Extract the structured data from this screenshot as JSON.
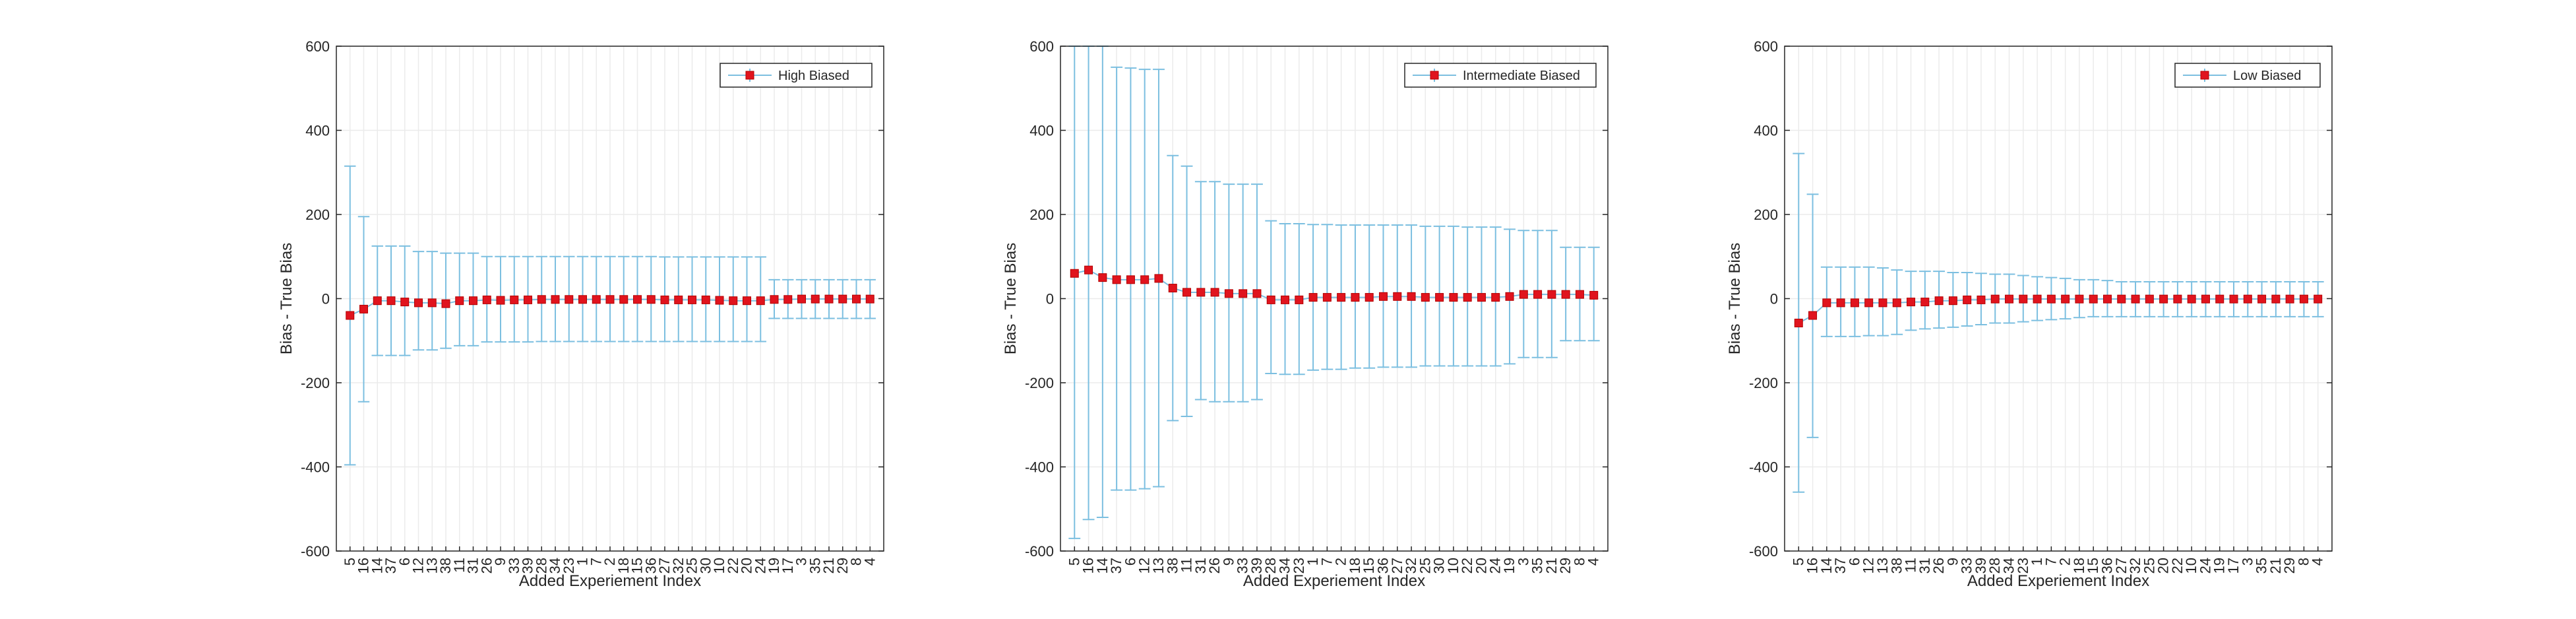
{
  "figure": {
    "colors": {
      "errorbar": "#7cbfe0",
      "marker": "#e0141e",
      "marker_edge": "#b30000",
      "axes": "#262626",
      "grid": "#ebebeb"
    }
  },
  "chart_data": [
    {
      "type": "errorbar",
      "xlabel": "Added Experiement Index",
      "ylabel": "Bias - True Bias",
      "ylim": [
        -600,
        600
      ],
      "yticks": [
        -600,
        -400,
        -200,
        0,
        200,
        400,
        600
      ],
      "grid": true,
      "legend_placement": "top-right",
      "categories": [
        "5",
        "16",
        "14",
        "37",
        "6",
        "12",
        "13",
        "38",
        "11",
        "31",
        "26",
        "9",
        "33",
        "39",
        "28",
        "34",
        "23",
        "1",
        "7",
        "2",
        "18",
        "15",
        "36",
        "27",
        "32",
        "25",
        "30",
        "10",
        "22",
        "20",
        "24",
        "19",
        "17",
        "3",
        "35",
        "21",
        "29",
        "8",
        "4"
      ],
      "series": [
        {
          "name": "High Biased",
          "values": [
            -40,
            -25,
            -5,
            -5,
            -8,
            -10,
            -10,
            -12,
            -5,
            -5,
            -3,
            -4,
            -3,
            -3,
            -2,
            -2,
            -2,
            -2,
            -2,
            -2,
            -2,
            -2,
            -2,
            -3,
            -3,
            -3,
            -3,
            -4,
            -5,
            -5,
            -5,
            -2,
            -2,
            -1,
            -1,
            -1,
            -1,
            -1,
            -1
          ],
          "upper": [
            315,
            195,
            125,
            125,
            125,
            112,
            112,
            108,
            108,
            108,
            100,
            100,
            100,
            100,
            100,
            100,
            100,
            100,
            100,
            100,
            100,
            100,
            100,
            99,
            99,
            99,
            99,
            99,
            99,
            99,
            99,
            45,
            45,
            45,
            45,
            45,
            45,
            45,
            45
          ],
          "lower": [
            -395,
            -245,
            -135,
            -135,
            -135,
            -122,
            -122,
            -118,
            -112,
            -112,
            -103,
            -103,
            -103,
            -103,
            -102,
            -102,
            -102,
            -102,
            -102,
            -102,
            -102,
            -102,
            -102,
            -102,
            -102,
            -102,
            -102,
            -102,
            -102,
            -102,
            -102,
            -47,
            -47,
            -47,
            -47,
            -47,
            -47,
            -47,
            -47
          ]
        }
      ]
    },
    {
      "type": "errorbar",
      "xlabel": "Added Experiement Index",
      "ylabel": "Bias - True Bias",
      "ylim": [
        -600,
        600
      ],
      "yticks": [
        -600,
        -400,
        -200,
        0,
        200,
        400,
        600
      ],
      "grid": true,
      "legend_placement": "top-right",
      "categories": [
        "5",
        "16",
        "14",
        "37",
        "6",
        "12",
        "13",
        "38",
        "11",
        "31",
        "26",
        "9",
        "33",
        "39",
        "28",
        "34",
        "23",
        "1",
        "7",
        "2",
        "18",
        "15",
        "36",
        "27",
        "32",
        "25",
        "30",
        "10",
        "22",
        "20",
        "24",
        "19",
        "3",
        "35",
        "21",
        "29",
        "8",
        "4"
      ],
      "series": [
        {
          "name": "Intermediate Biased",
          "values": [
            60,
            68,
            50,
            45,
            45,
            45,
            48,
            25,
            15,
            15,
            15,
            12,
            12,
            12,
            -3,
            -3,
            -3,
            3,
            3,
            3,
            3,
            3,
            5,
            5,
            5,
            3,
            3,
            3,
            3,
            3,
            3,
            5,
            10,
            10,
            10,
            10,
            10,
            8
          ],
          "upper": [
            600,
            600,
            600,
            550,
            548,
            545,
            545,
            340,
            315,
            278,
            278,
            272,
            272,
            272,
            185,
            178,
            178,
            176,
            176,
            175,
            175,
            175,
            175,
            175,
            175,
            172,
            172,
            172,
            170,
            170,
            170,
            165,
            162,
            162,
            162,
            122,
            122,
            122
          ],
          "lower": [
            -570,
            -525,
            -520,
            -455,
            -455,
            -452,
            -447,
            -290,
            -280,
            -240,
            -245,
            -245,
            -245,
            -240,
            -178,
            -180,
            -180,
            -170,
            -168,
            -168,
            -165,
            -165,
            -163,
            -163,
            -163,
            -160,
            -160,
            -160,
            -160,
            -160,
            -160,
            -155,
            -140,
            -140,
            -140,
            -100,
            -100,
            -100
          ]
        }
      ]
    },
    {
      "type": "errorbar",
      "xlabel": "Added Experiement Index",
      "ylabel": "Bias - True Bias",
      "ylim": [
        -600,
        600
      ],
      "yticks": [
        -600,
        -400,
        -200,
        0,
        200,
        400,
        600
      ],
      "grid": true,
      "legend_placement": "top-right",
      "categories": [
        "5",
        "16",
        "14",
        "37",
        "6",
        "12",
        "13",
        "38",
        "11",
        "31",
        "26",
        "9",
        "33",
        "39",
        "28",
        "34",
        "23",
        "1",
        "7",
        "2",
        "18",
        "15",
        "36",
        "27",
        "32",
        "25",
        "20",
        "22",
        "10",
        "24",
        "19",
        "17",
        "3",
        "35",
        "21",
        "29",
        "8",
        "4"
      ],
      "series": [
        {
          "name": "Low Biased",
          "values": [
            -58,
            -40,
            -10,
            -10,
            -10,
            -10,
            -10,
            -10,
            -8,
            -8,
            -5,
            -5,
            -3,
            -3,
            -1,
            -1,
            -1,
            -1,
            -1,
            -1,
            -1,
            -1,
            -1,
            -1,
            -1,
            -1,
            -1,
            -1,
            -1,
            -1,
            -1,
            -1,
            -1,
            -1,
            -1,
            -1,
            -1,
            -1
          ],
          "upper": [
            345,
            248,
            75,
            75,
            75,
            75,
            73,
            68,
            65,
            65,
            65,
            62,
            62,
            60,
            58,
            58,
            55,
            52,
            50,
            48,
            45,
            45,
            43,
            40,
            40,
            40,
            40,
            40,
            40,
            40,
            40,
            40,
            40,
            40,
            40,
            40,
            40,
            40
          ],
          "lower": [
            -460,
            -330,
            -90,
            -90,
            -90,
            -88,
            -88,
            -85,
            -75,
            -72,
            -70,
            -68,
            -65,
            -62,
            -58,
            -58,
            -55,
            -52,
            -50,
            -48,
            -45,
            -43,
            -43,
            -43,
            -43,
            -43,
            -43,
            -43,
            -43,
            -43,
            -43,
            -43,
            -43,
            -43,
            -43,
            -43,
            -43,
            -43
          ]
        }
      ]
    }
  ]
}
